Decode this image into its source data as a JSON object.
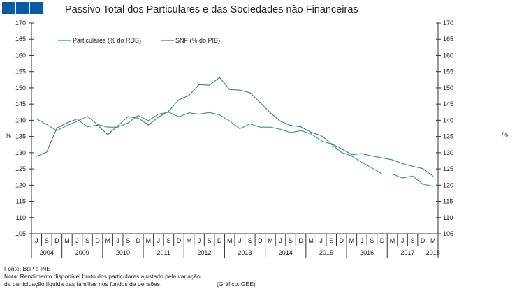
{
  "chart_data": {
    "type": "line",
    "title": "Passivo Total dos Particulares e das Sociedades não Financeiras",
    "ylabel_left": "%",
    "ylabel_right": "%",
    "ylim": [
      105,
      170
    ],
    "yticks": [
      105,
      110,
      115,
      120,
      125,
      130,
      135,
      140,
      145,
      150,
      155,
      160,
      165,
      170
    ],
    "legend_position": "top-left",
    "categories": [
      "J",
      "S",
      "D",
      "M",
      "J",
      "S",
      "D",
      "M",
      "J",
      "S",
      "D",
      "M",
      "J",
      "S",
      "D",
      "M",
      "J",
      "S",
      "D",
      "M",
      "J",
      "S",
      "D",
      "M",
      "J",
      "S",
      "D",
      "M",
      "J",
      "S",
      "D",
      "M",
      "J",
      "S",
      "D",
      "M",
      "J",
      "S",
      "D",
      "M"
    ],
    "year_groups": [
      {
        "label": "2004",
        "count": 3
      },
      {
        "label": "2009",
        "count": 4
      },
      {
        "label": "2010",
        "count": 4
      },
      {
        "label": "2011",
        "count": 4
      },
      {
        "label": "2012",
        "count": 4
      },
      {
        "label": "2013",
        "count": 4
      },
      {
        "label": "2014",
        "count": 4
      },
      {
        "label": "2015",
        "count": 4
      },
      {
        "label": "2016",
        "count": 4
      },
      {
        "label": "2017",
        "count": 4
      },
      {
        "label": "2018",
        "count": 1
      }
    ],
    "series": [
      {
        "name": "Particulares (% do RDB)",
        "color": "#3a9a5c",
        "values": [
          140.4,
          138.7,
          136.8,
          138.4,
          139.7,
          141.2,
          138.7,
          137.9,
          137.9,
          139.2,
          141.5,
          139.9,
          141.9,
          142.5,
          141.1,
          142.3,
          141.9,
          142.4,
          141.7,
          139.8,
          137.4,
          138.9,
          137.9,
          137.9,
          137.2,
          136.2,
          136.8,
          135.8,
          133.7,
          132.6,
          130.1,
          129.0,
          127.0,
          125.3,
          123.4,
          123.4,
          122.2,
          122.8,
          120.3,
          119.7
        ]
      },
      {
        "name": "SNF (% do PIB)",
        "color": "#3b78a8",
        "values": [
          128.9,
          130.2,
          137.6,
          139.2,
          140.4,
          138.0,
          138.5,
          135.6,
          138.3,
          141.1,
          140.7,
          138.6,
          141.0,
          142.8,
          146.3,
          147.7,
          151.0,
          150.8,
          153.2,
          149.5,
          149.3,
          148.5,
          145.5,
          142.3,
          139.7,
          138.4,
          138.0,
          136.3,
          135.3,
          132.8,
          131.2,
          129.4,
          129.7,
          129.0,
          128.4,
          127.8,
          126.6,
          125.8,
          125.1,
          122.8
        ]
      }
    ]
  },
  "footer": {
    "source": "Fonte: BdP e INE",
    "note_line1": "Nota: Rendimento disponível bruto dos particulares ajustado pela variação",
    "note_line2": " da participação líquida das famílias nos fundos de pensões.",
    "credit": "(Gráfico: GEE)"
  }
}
